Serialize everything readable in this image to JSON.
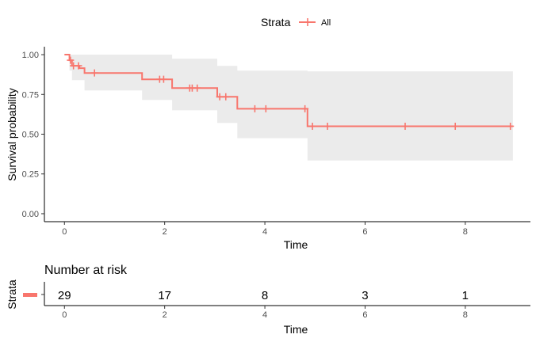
{
  "chart_data": [
    {
      "type": "line",
      "subtype": "kaplan-meier",
      "xlabel": "Time",
      "ylabel": "Survival probability",
      "xlim": [
        -0.4,
        9.3
      ],
      "ylim": [
        -0.05,
        1.05
      ],
      "xticks": [
        0,
        2,
        4,
        6,
        8
      ],
      "yticks": [
        0.0,
        0.25,
        0.5,
        0.75,
        1.0
      ],
      "ytick_labels": [
        "0.00",
        "0.25",
        "0.50",
        "0.75",
        "1.00"
      ],
      "grid": false,
      "legend": {
        "title": "Strata",
        "position": "top",
        "entries": [
          "All"
        ]
      },
      "series": [
        {
          "name": "All",
          "color": "#F8766D",
          "step_x": [
            0,
            0.1,
            0.15,
            0.2,
            0.3,
            0.4,
            1.55,
            2.15,
            3.05,
            3.45,
            4.85,
            8.95
          ],
          "step_y": [
            1.0,
            0.965,
            0.93,
            0.93,
            0.915,
            0.885,
            0.845,
            0.79,
            0.735,
            0.66,
            0.55,
            0.55
          ],
          "ci_upper": [
            1.0,
            1.0,
            1.0,
            1.0,
            1.0,
            1.0,
            1.0,
            0.975,
            0.93,
            0.9,
            0.895
          ],
          "ci_lower": [
            1.0,
            0.9,
            0.84,
            0.84,
            0.84,
            0.775,
            0.715,
            0.65,
            0.57,
            0.475,
            0.335
          ],
          "ci_color": "#EBEBEB",
          "censor_x": [
            0.12,
            0.18,
            0.28,
            0.6,
            1.9,
            1.98,
            2.5,
            2.55,
            2.65,
            3.1,
            3.22,
            3.8,
            4.02,
            4.8,
            4.95,
            5.25,
            6.8,
            7.8,
            8.9
          ],
          "censor_y": [
            0.965,
            0.93,
            0.93,
            0.885,
            0.845,
            0.845,
            0.79,
            0.79,
            0.79,
            0.735,
            0.735,
            0.66,
            0.66,
            0.66,
            0.55,
            0.55,
            0.55,
            0.55,
            0.55
          ]
        }
      ]
    },
    {
      "type": "table",
      "title": "Number at risk",
      "xlabel": "Time",
      "ylabel": "Strata",
      "xlim": [
        -0.4,
        9.3
      ],
      "xticks": [
        0,
        2,
        4,
        6,
        8
      ],
      "rows": [
        {
          "strata": "All",
          "color": "#F8766D",
          "times": [
            0,
            2,
            4,
            6,
            8
          ],
          "values": [
            29,
            17,
            8,
            3,
            1
          ]
        }
      ]
    }
  ]
}
